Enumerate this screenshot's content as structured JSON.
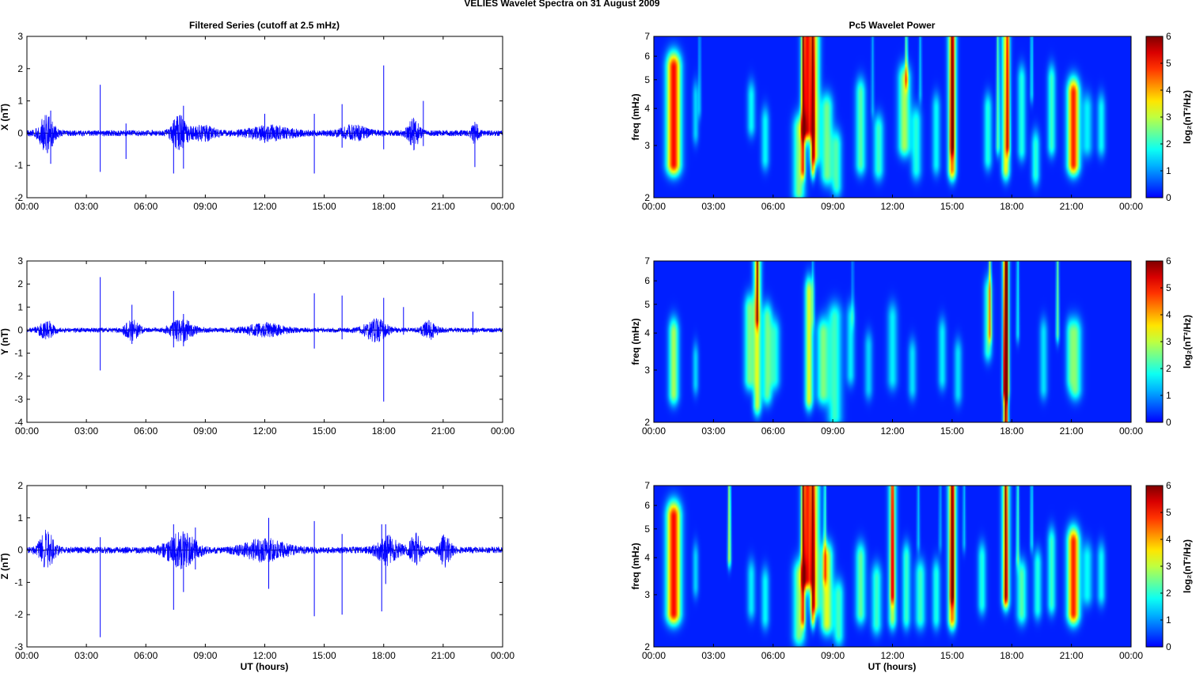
{
  "figure": {
    "suptitle": "VELIES Wavelet Spectra on 31 August    2009",
    "left_title": "Filtered Series (cutoff at 2.5 mHz)",
    "right_title": "Pc5 Wavelet Power",
    "xlabel": "UT (hours)",
    "colors": {
      "series_line": "#0000ff",
      "background": "#ffffff",
      "axes": "#000000"
    }
  },
  "chart_data": [
    {
      "id": "x_series",
      "type": "line",
      "title": "Filtered Series (cutoff at 2.5 mHz)",
      "ylabel": "X (nT)",
      "xlabel": "",
      "xlim": [
        0,
        24
      ],
      "ylim": [
        -2,
        3
      ],
      "xticks": [
        "00:00",
        "03:00",
        "06:00",
        "09:00",
        "12:00",
        "15:00",
        "18:00",
        "21:00",
        "00:00"
      ],
      "yticks": [
        -2,
        -1,
        0,
        1,
        2,
        3
      ],
      "base_amplitude": 0.09,
      "bursts": [
        [
          1.0,
          0.4,
          0.55
        ],
        [
          7.7,
          0.4,
          0.5
        ],
        [
          19.5,
          0.3,
          0.45
        ],
        [
          22.6,
          0.2,
          0.3
        ],
        [
          8.9,
          0.6,
          0.2
        ],
        [
          12.3,
          1.2,
          0.18
        ],
        [
          16.5,
          0.7,
          0.2
        ]
      ],
      "spikes": [
        [
          3.7,
          1.5,
          -1.2
        ],
        [
          7.4,
          0.4,
          -1.25
        ],
        [
          7.9,
          0.85,
          -1.1
        ],
        [
          12.0,
          0.6,
          -0.3
        ],
        [
          14.5,
          0.6,
          -1.25
        ],
        [
          15.9,
          0.9,
          -0.45
        ],
        [
          18.0,
          2.1,
          -0.5
        ],
        [
          20.0,
          1.0,
          -0.4
        ],
        [
          22.6,
          0.2,
          -1.05
        ],
        [
          1.2,
          0.7,
          -0.95
        ],
        [
          5.0,
          0.3,
          -0.8
        ]
      ],
      "series": [
        {
          "color": "#0000ff"
        }
      ]
    },
    {
      "id": "x_power",
      "type": "heatmap",
      "title": "Pc5 Wavelet Power",
      "ylabel": "freq (mHz)",
      "xlabel": "",
      "xlim": [
        0,
        24
      ],
      "ylim": [
        2,
        7
      ],
      "yscale": "log",
      "xticks": [
        "00:00",
        "03:00",
        "06:00",
        "09:00",
        "12:00",
        "15:00",
        "18:00",
        "21:00",
        "00:00"
      ],
      "yticks": [
        2,
        3,
        4,
        5,
        6,
        7
      ],
      "colorbar": {
        "label": "log₂(nT²/Hz)",
        "range": [
          0,
          6
        ],
        "ticks": [
          0,
          1,
          2,
          3,
          4,
          5,
          6
        ],
        "colormap": "jet"
      },
      "events": [
        [
          1.0,
          2.6,
          5.5,
          0.35,
          5.2
        ],
        [
          2.1,
          3.3,
          4.4,
          0.15,
          1.3
        ],
        [
          4.9,
          3.5,
          4.4,
          0.2,
          1.6
        ],
        [
          5.6,
          2.7,
          3.6,
          0.2,
          1.6
        ],
        [
          7.3,
          2.1,
          3.4,
          0.3,
          2.5
        ],
        [
          7.7,
          3.4,
          7,
          0.25,
          5.0
        ],
        [
          8.1,
          2.8,
          7,
          0.25,
          3.0
        ],
        [
          8.7,
          2.4,
          4.0,
          0.3,
          2.4
        ],
        [
          9.2,
          2.2,
          3.0,
          0.25,
          2.0
        ],
        [
          10.4,
          2.6,
          4.5,
          0.25,
          2.2
        ],
        [
          11.3,
          2.5,
          3.4,
          0.25,
          2.0
        ],
        [
          12.6,
          3.0,
          5.0,
          0.3,
          2.8
        ],
        [
          13.2,
          2.5,
          3.6,
          0.25,
          1.8
        ],
        [
          14.2,
          2.6,
          4.0,
          0.2,
          1.6
        ],
        [
          15.0,
          2.5,
          7,
          0.2,
          4.4
        ],
        [
          16.8,
          2.7,
          4.0,
          0.2,
          1.8
        ],
        [
          17.7,
          2.5,
          7,
          0.2,
          3.3
        ],
        [
          18.5,
          2.9,
          5.0,
          0.2,
          1.8
        ],
        [
          19.2,
          2.4,
          3.0,
          0.2,
          1.9
        ],
        [
          20.0,
          3.0,
          5.0,
          0.2,
          2.0
        ],
        [
          21.1,
          2.6,
          4.5,
          0.3,
          5.0
        ],
        [
          21.8,
          3.0,
          4.0,
          0.25,
          1.5
        ],
        [
          22.5,
          3.0,
          4.0,
          0.2,
          1.6
        ]
      ],
      "streaks": [
        [
          2.3,
          4.0,
          7,
          1.0
        ],
        [
          7.5,
          2.5,
          7,
          3.5
        ],
        [
          8.0,
          2.5,
          7,
          3.5
        ],
        [
          11.0,
          4.0,
          7,
          1.0
        ],
        [
          12.7,
          5.0,
          7,
          2.5
        ],
        [
          13.4,
          4.5,
          7,
          1.2
        ],
        [
          15.0,
          3.0,
          7,
          3.0
        ],
        [
          17.3,
          3.0,
          7,
          2.2
        ],
        [
          17.8,
          3.0,
          7,
          3.0
        ],
        [
          19.0,
          4.5,
          7,
          1.5
        ]
      ]
    },
    {
      "id": "y_series",
      "type": "line",
      "title": "",
      "ylabel": "Y (nT)",
      "xlabel": "",
      "xlim": [
        0,
        24
      ],
      "ylim": [
        -4,
        3
      ],
      "xticks": [
        "00:00",
        "03:00",
        "06:00",
        "09:00",
        "12:00",
        "15:00",
        "18:00",
        "21:00",
        "00:00"
      ],
      "yticks": [
        -4,
        -3,
        -2,
        -1,
        0,
        1,
        2,
        3
      ],
      "base_amplitude": 0.1,
      "bursts": [
        [
          1.0,
          0.4,
          0.35
        ],
        [
          5.3,
          0.4,
          0.4
        ],
        [
          7.8,
          0.6,
          0.45
        ],
        [
          12.0,
          1.0,
          0.25
        ],
        [
          17.6,
          0.6,
          0.45
        ],
        [
          20.3,
          0.4,
          0.35
        ]
      ],
      "spikes": [
        [
          3.7,
          2.3,
          -1.75
        ],
        [
          5.3,
          1.1,
          -0.6
        ],
        [
          7.4,
          1.7,
          -0.75
        ],
        [
          7.9,
          0.7,
          -0.7
        ],
        [
          14.5,
          1.6,
          -0.8
        ],
        [
          15.9,
          1.5,
          -0.4
        ],
        [
          18.0,
          1.4,
          -3.1
        ],
        [
          19.0,
          1.0,
          -0.2
        ],
        [
          22.5,
          0.8,
          -0.2
        ]
      ],
      "series": [
        {
          "color": "#0000ff"
        }
      ]
    },
    {
      "id": "y_power",
      "type": "heatmap",
      "title": "",
      "ylabel": "freq (mHz)",
      "xlabel": "",
      "xlim": [
        0,
        24
      ],
      "ylim": [
        2,
        7
      ],
      "yscale": "log",
      "xticks": [
        "00:00",
        "03:00",
        "06:00",
        "09:00",
        "12:00",
        "15:00",
        "18:00",
        "21:00",
        "00:00"
      ],
      "yticks": [
        2,
        3,
        4,
        5,
        6,
        7
      ],
      "colorbar": {
        "label": "log₂(nT²/Hz)",
        "range": [
          0,
          6
        ],
        "ticks": [
          0,
          1,
          2,
          3,
          4,
          5,
          6
        ],
        "colormap": "jet"
      },
      "events": [
        [
          1.0,
          2.5,
          4.0,
          0.25,
          2.8
        ],
        [
          2.1,
          2.7,
          3.3,
          0.15,
          1.3
        ],
        [
          4.8,
          2.8,
          4.8,
          0.25,
          2.4
        ],
        [
          5.2,
          2.3,
          7,
          0.2,
          3.0
        ],
        [
          5.7,
          2.5,
          4.5,
          0.25,
          2.3
        ],
        [
          6.1,
          2.8,
          4.0,
          0.25,
          1.7
        ],
        [
          7.8,
          2.4,
          5.5,
          0.2,
          3.2
        ],
        [
          8.5,
          2.5,
          4.0,
          0.3,
          2.4
        ],
        [
          9.1,
          2.1,
          4.5,
          0.35,
          2.0
        ],
        [
          9.9,
          2.9,
          4.5,
          0.2,
          1.5
        ],
        [
          10.8,
          2.6,
          3.6,
          0.2,
          1.3
        ],
        [
          12.0,
          2.8,
          4.5,
          0.25,
          1.5
        ],
        [
          13.0,
          2.6,
          3.4,
          0.2,
          1.4
        ],
        [
          14.5,
          2.8,
          4.0,
          0.2,
          1.5
        ],
        [
          15.3,
          2.5,
          3.4,
          0.2,
          1.4
        ],
        [
          16.8,
          3.5,
          5.5,
          0.2,
          2.0
        ],
        [
          17.7,
          2.6,
          7,
          0.15,
          4.5
        ],
        [
          19.6,
          2.6,
          4.0,
          0.2,
          1.4
        ],
        [
          20.9,
          2.8,
          4.0,
          0.2,
          1.2
        ],
        [
          21.2,
          2.6,
          4.0,
          0.3,
          2.4
        ]
      ],
      "streaks": [
        [
          5.2,
          4.5,
          7,
          3.0
        ],
        [
          16.9,
          4.0,
          7,
          2.8
        ],
        [
          17.7,
          2.0,
          7,
          6.0
        ],
        [
          18.3,
          4.0,
          7,
          1.5
        ],
        [
          20.3,
          4.0,
          7,
          2.3
        ],
        [
          10.0,
          4.5,
          7,
          0.8
        ],
        [
          8.0,
          4.5,
          7,
          1.0
        ]
      ]
    },
    {
      "id": "z_series",
      "type": "line",
      "title": "",
      "ylabel": "Z (nT)",
      "xlabel": "UT (hours)",
      "xlim": [
        0,
        24
      ],
      "ylim": [
        -3,
        2
      ],
      "xticks": [
        "00:00",
        "03:00",
        "06:00",
        "09:00",
        "12:00",
        "15:00",
        "18:00",
        "21:00",
        "00:00"
      ],
      "yticks": [
        -3,
        -2,
        -1,
        0,
        1,
        2
      ],
      "base_amplitude": 0.1,
      "bursts": [
        [
          1.0,
          0.4,
          0.55
        ],
        [
          7.8,
          0.8,
          0.5
        ],
        [
          12.0,
          1.2,
          0.3
        ],
        [
          18.2,
          0.6,
          0.4
        ],
        [
          19.6,
          0.3,
          0.45
        ],
        [
          21.1,
          0.3,
          0.45
        ]
      ],
      "spikes": [
        [
          3.7,
          0.4,
          -2.7
        ],
        [
          7.4,
          0.8,
          -1.85
        ],
        [
          7.9,
          0.5,
          -1.3
        ],
        [
          8.5,
          0.7,
          -0.6
        ],
        [
          12.2,
          1.0,
          -1.2
        ],
        [
          14.5,
          0.9,
          -2.05
        ],
        [
          15.9,
          0.5,
          -2.0
        ],
        [
          17.9,
          0.8,
          -1.9
        ],
        [
          18.1,
          0.8,
          -1.05
        ]
      ],
      "series": [
        {
          "color": "#0000ff"
        }
      ]
    },
    {
      "id": "z_power",
      "type": "heatmap",
      "title": "",
      "ylabel": "freq (mHz)",
      "xlabel": "UT (hours)",
      "xlim": [
        0,
        24
      ],
      "ylim": [
        2,
        7
      ],
      "yscale": "log",
      "xticks": [
        "00:00",
        "03:00",
        "06:00",
        "09:00",
        "12:00",
        "15:00",
        "18:00",
        "21:00",
        "00:00"
      ],
      "yticks": [
        2,
        3,
        4,
        5,
        6,
        7
      ],
      "colorbar": {
        "label": "log₂(nT²/Hz)",
        "range": [
          0,
          6
        ],
        "ticks": [
          0,
          1,
          2,
          3,
          4,
          5,
          6
        ],
        "colormap": "jet"
      },
      "events": [
        [
          1.0,
          2.6,
          5.5,
          0.35,
          5.2
        ],
        [
          2.1,
          3.2,
          4.0,
          0.15,
          1.3
        ],
        [
          4.9,
          2.7,
          3.5,
          0.2,
          1.5
        ],
        [
          5.6,
          2.5,
          3.3,
          0.2,
          1.6
        ],
        [
          7.3,
          2.2,
          3.5,
          0.3,
          2.5
        ],
        [
          7.7,
          3.4,
          7,
          0.25,
          4.8
        ],
        [
          8.1,
          2.8,
          7,
          0.25,
          3.0
        ],
        [
          8.7,
          2.4,
          4.0,
          0.3,
          3.2
        ],
        [
          9.3,
          2.2,
          3.0,
          0.25,
          2.0
        ],
        [
          10.4,
          2.6,
          4.0,
          0.25,
          2.3
        ],
        [
          11.2,
          2.4,
          3.4,
          0.25,
          2.0
        ],
        [
          12.0,
          2.5,
          7,
          0.2,
          2.8
        ],
        [
          12.7,
          2.5,
          4.0,
          0.2,
          2.0
        ],
        [
          13.4,
          2.5,
          3.5,
          0.25,
          2.0
        ],
        [
          14.2,
          2.5,
          3.5,
          0.2,
          1.8
        ],
        [
          15.0,
          2.5,
          7,
          0.2,
          4.4
        ],
        [
          16.5,
          2.8,
          4.0,
          0.2,
          1.8
        ],
        [
          17.7,
          2.9,
          7,
          0.2,
          3.3
        ],
        [
          18.5,
          2.6,
          3.5,
          0.25,
          2.2
        ],
        [
          19.3,
          2.7,
          3.8,
          0.2,
          1.8
        ],
        [
          20.0,
          2.8,
          4.5,
          0.2,
          2.0
        ],
        [
          21.1,
          2.6,
          4.5,
          0.3,
          5.0
        ],
        [
          21.8,
          3.0,
          4.0,
          0.25,
          1.6
        ],
        [
          22.5,
          3.0,
          4.0,
          0.2,
          1.6
        ]
      ],
      "streaks": [
        [
          3.8,
          4.0,
          7,
          3.0
        ],
        [
          7.5,
          2.5,
          7,
          3.5
        ],
        [
          8.0,
          2.5,
          7,
          3.5
        ],
        [
          8.6,
          3.5,
          7,
          2.0
        ],
        [
          12.0,
          3.0,
          7,
          3.0
        ],
        [
          13.3,
          4.5,
          7,
          1.2
        ],
        [
          14.4,
          4.5,
          7,
          1.0
        ],
        [
          15.0,
          3.0,
          7,
          3.0
        ],
        [
          15.6,
          4.5,
          7,
          1.2
        ],
        [
          17.7,
          3.0,
          7,
          3.0
        ],
        [
          18.3,
          4.0,
          7,
          2.0
        ],
        [
          19.0,
          4.5,
          7,
          1.5
        ]
      ]
    }
  ]
}
